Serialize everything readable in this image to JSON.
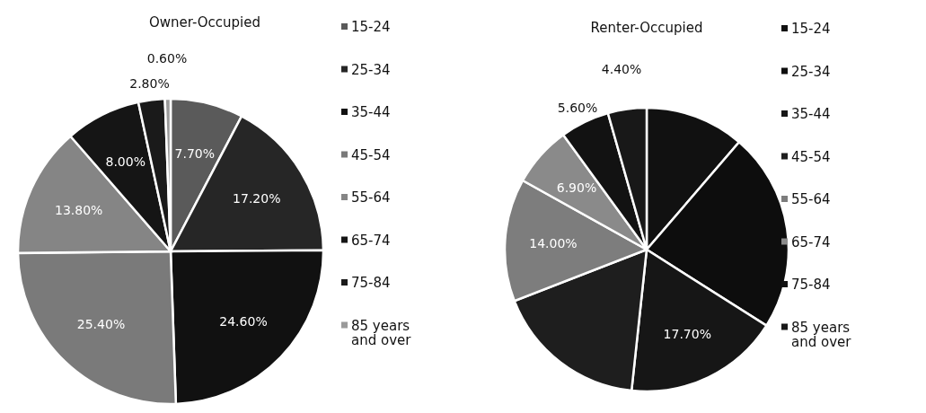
{
  "chart_data": [
    {
      "type": "pie",
      "title": "Owner-Occupied",
      "categories": [
        "15-24",
        "25-34",
        "35-44",
        "45-54",
        "55-64",
        "65-74",
        "75-84",
        "85 years and over"
      ],
      "values": [
        7.7,
        17.2,
        24.6,
        25.4,
        13.8,
        8.0,
        2.8,
        0.6
      ],
      "colors": [
        "#5a5a5a",
        "#262626",
        "#111111",
        "#7a7a7a",
        "#858585",
        "#151515",
        "#1a1a1a",
        "#9a9a9a"
      ],
      "value_labels": [
        "7.70%",
        "17.20%",
        "24.60%",
        "25.40%",
        "13.80%",
        "8.00%",
        "2.80%",
        "0.60%"
      ],
      "legend": "right"
    },
    {
      "type": "pie",
      "title": "Renter-Occupied",
      "categories": [
        "15-24",
        "25-34",
        "35-44",
        "45-54",
        "55-64",
        "65-74",
        "75-84",
        "85 years and over"
      ],
      "values": [
        11.3,
        22.7,
        17.7,
        17.4,
        14.0,
        6.9,
        5.6,
        4.4
      ],
      "colors": [
        "#111111",
        "#0d0d0d",
        "#161616",
        "#1e1e1e",
        "#7d7d7d",
        "#8a8a8a",
        "#121212",
        "#181818"
      ],
      "value_labels": [
        null,
        null,
        "17.70%",
        null,
        "14.00%",
        "6.90%",
        "5.60%",
        "4.40%"
      ],
      "legend": "right"
    }
  ]
}
